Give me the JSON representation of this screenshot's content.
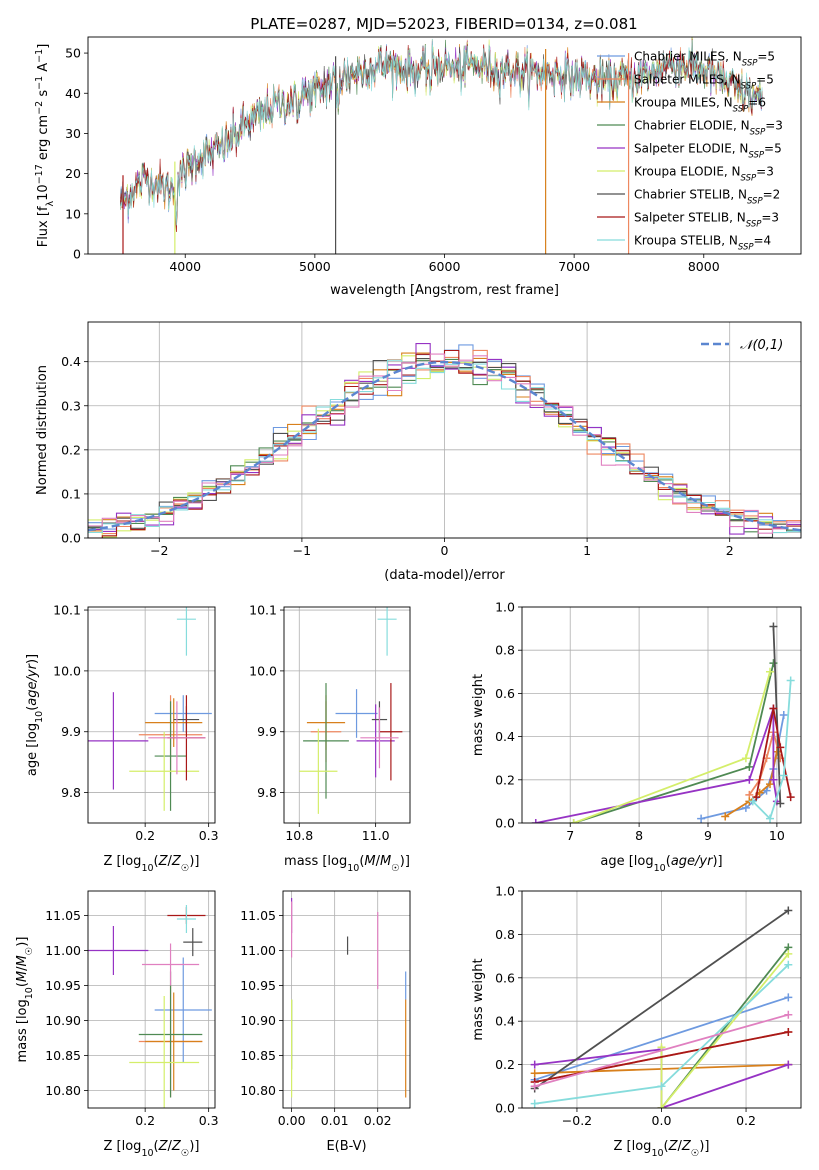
{
  "figure": {
    "title": "PLATE=0287, MJD=52023, FIBERID=0134, z=0.081"
  },
  "colors": {
    "c0": "#6e9ae0",
    "c1": "#ee8860",
    "c2": "#d8801c",
    "c3": "#4f8a53",
    "c4": "#9633c4",
    "c5": "#d4ee6a",
    "c6": "#505050",
    "c7": "#a81818",
    "c8": "#86dcdc",
    "c9": "#e080c0",
    "gauss": "#5b86d0"
  },
  "chart_data": [
    {
      "id": "spectrum",
      "type": "line",
      "xlabel": "wavelength [Angstrom, rest frame]",
      "ylabel": "Flux [f_λ 10^-17 erg cm^-2 s^-1 A^-1]",
      "xlim": [
        3250,
        8750
      ],
      "ylim": [
        0,
        54
      ],
      "xticks": [
        4000,
        5000,
        6000,
        7000,
        8000
      ],
      "yticks": [
        0,
        10,
        20,
        30,
        40,
        50
      ],
      "grid": false,
      "legend_position": "right",
      "continuum_x": [
        3500,
        3600,
        3700,
        3800,
        3900,
        4000,
        4100,
        4200,
        4300,
        4400,
        4500,
        4600,
        4700,
        4800,
        4900,
        5000,
        5100,
        5200,
        5300,
        5400,
        5500,
        5600,
        5700,
        5800,
        5900,
        6000,
        6100,
        6200,
        6300,
        6400,
        6500,
        6600,
        6700,
        6800,
        6900,
        7000,
        7100,
        7200,
        7300,
        7400,
        7500,
        7600,
        7700,
        7800,
        7900,
        8000,
        8100,
        8200,
        8300,
        8400
      ],
      "continuum_y": [
        13,
        16,
        19,
        17,
        16,
        21,
        24,
        25,
        27,
        30,
        33,
        35,
        37,
        38,
        40,
        40,
        42,
        44,
        45,
        46,
        47,
        47,
        46,
        45,
        47,
        47,
        46,
        47,
        47,
        46,
        46,
        45,
        45,
        45,
        45,
        44,
        44,
        43,
        43,
        44,
        44,
        45,
        47,
        47,
        47,
        46,
        44,
        42,
        40,
        39
      ],
      "drops": [
        {
          "x": 3520,
          "series": "Salpeter STELIB"
        },
        {
          "x": 3920,
          "series": "Kroupa ELODIE"
        },
        {
          "x": 5160,
          "series": "Chabrier STELIB"
        },
        {
          "x": 6780,
          "series": "Kroupa MILES"
        },
        {
          "x": 7420,
          "series": "Salpeter MILES"
        }
      ],
      "series": [
        {
          "name": "Chabrier MILES",
          "nssp": "5",
          "color": "#6e9ae0"
        },
        {
          "name": "Salpeter MILES",
          "nssp": "5",
          "color": "#ee8860"
        },
        {
          "name": "Kroupa MILES",
          "nssp": "6",
          "color": "#d8801c"
        },
        {
          "name": "Chabrier ELODIE",
          "nssp": "3",
          "color": "#4f8a53"
        },
        {
          "name": "Salpeter ELODIE",
          "nssp": "5",
          "color": "#9633c4"
        },
        {
          "name": "Kroupa ELODIE",
          "nssp": "3",
          "color": "#d4ee6a"
        },
        {
          "name": "Chabrier STELIB",
          "nssp": "2",
          "color": "#505050"
        },
        {
          "name": "Salpeter STELIB",
          "nssp": "3",
          "color": "#a81818"
        },
        {
          "name": "Kroupa STELIB",
          "nssp": "4",
          "color": "#86dcdc"
        }
      ]
    },
    {
      "id": "residuals",
      "type": "histogram",
      "xlabel": "(data-model)/error",
      "ylabel": "Normed distribution",
      "xlim": [
        -2.5,
        2.5
      ],
      "ylim": [
        0,
        0.49
      ],
      "xticks": [
        -2,
        -1,
        0,
        1,
        2
      ],
      "yticks": [
        0.0,
        0.1,
        0.2,
        0.3,
        0.4
      ],
      "grid": true,
      "legend": "𝒩(0,1)",
      "legend_position": "top-right",
      "bin_width": 0.1,
      "n_bins": 50,
      "overlay": "normal pdf mean 0 sigma 1"
    },
    {
      "id": "age-vs-Z",
      "type": "errorbar",
      "xlabel": "Z [log10(Z/Z☉)]",
      "ylabel": "age [log10(age/yr)]",
      "xlim": [
        0.11,
        0.31
      ],
      "ylim": [
        9.75,
        10.105
      ],
      "xticks": [
        0.2,
        0.3
      ],
      "yticks": [
        9.8,
        9.9,
        10.0,
        10.1
      ],
      "grid": true,
      "points": [
        {
          "series": "Chabrier MILES",
          "x": 0.26,
          "y": 9.93,
          "xerr": 0.045,
          "yerr": 0.03
        },
        {
          "series": "Salpeter MILES",
          "x": 0.24,
          "y": 9.895,
          "xerr": 0.05,
          "yerr": 0.065
        },
        {
          "series": "Kroupa MILES",
          "x": 0.245,
          "y": 9.915,
          "xerr": 0.045,
          "yerr": 0.04
        },
        {
          "series": "Chabrier ELODIE",
          "x": 0.24,
          "y": 9.86,
          "xerr": 0.025,
          "yerr": 0.09
        },
        {
          "series": "Salpeter ELODIE",
          "x": 0.15,
          "y": 9.885,
          "xerr": 0.055,
          "yerr": 0.08
        },
        {
          "series": "Kroupa ELODIE",
          "x": 0.23,
          "y": 9.835,
          "xerr": 0.055,
          "yerr": 0.065
        },
        {
          "series": "Chabrier STELIB",
          "x": 0.265,
          "y": 9.92,
          "xerr": 0.02,
          "yerr": 0.022
        },
        {
          "series": "Salpeter STELIB",
          "x": 0.265,
          "y": 9.89,
          "xerr": 0.03,
          "yerr": 0.07
        },
        {
          "series": "Kroupa STELIB",
          "x": 0.265,
          "y": 10.085,
          "xerr": 0.015,
          "yerr": 0.06
        },
        {
          "series": "pink",
          "x": 0.25,
          "y": 9.89,
          "xerr": 0.045,
          "yerr": 0.06
        }
      ]
    },
    {
      "id": "age-vs-mass",
      "type": "errorbar",
      "xlabel": "mass [log10(M/M☉)]",
      "ylabel": "",
      "xlim": [
        10.76,
        11.09
      ],
      "ylim": [
        9.75,
        10.105
      ],
      "xticks": [
        10.8,
        11.0
      ],
      "yticks": [
        9.8,
        9.9,
        10.0,
        10.1
      ],
      "grid": true,
      "points": [
        {
          "series": "Chabrier MILES",
          "x": 10.95,
          "y": 9.93,
          "xerr": 0.055,
          "yerr": 0.04
        },
        {
          "series": "Salpeter MILES",
          "x": 10.87,
          "y": 9.9,
          "xerr": 0.04,
          "yerr": 0.05
        },
        {
          "series": "Kroupa MILES",
          "x": 10.87,
          "y": 9.915,
          "xerr": 0.05,
          "yerr": 0.045
        },
        {
          "series": "Chabrier ELODIE",
          "x": 10.87,
          "y": 9.885,
          "xerr": 0.06,
          "yerr": 0.095
        },
        {
          "series": "Salpeter ELODIE",
          "x": 11.0,
          "y": 9.885,
          "xerr": 0.05,
          "yerr": 0.06
        },
        {
          "series": "Kroupa ELODIE",
          "x": 10.85,
          "y": 9.835,
          "xerr": 0.05,
          "yerr": 0.07
        },
        {
          "series": "Chabrier STELIB",
          "x": 11.01,
          "y": 9.92,
          "xerr": 0.02,
          "yerr": 0.03
        },
        {
          "series": "Salpeter STELIB",
          "x": 11.04,
          "y": 9.9,
          "xerr": 0.03,
          "yerr": 0.08
        },
        {
          "series": "Kroupa STELIB",
          "x": 11.03,
          "y": 10.085,
          "xerr": 0.025,
          "yerr": 0.06
        },
        {
          "series": "pink",
          "x": 11.01,
          "y": 9.89,
          "xerr": 0.05,
          "yerr": 0.05
        }
      ]
    },
    {
      "id": "weight-vs-age",
      "type": "line",
      "xlabel": "age [log10(age/yr)]",
      "ylabel": "mass weight",
      "xlim": [
        6.3,
        10.35
      ],
      "ylim": [
        0,
        1.0
      ],
      "xticks": [
        7,
        8,
        9,
        10
      ],
      "yticks": [
        0.0,
        0.2,
        0.4,
        0.6,
        0.8,
        1.0
      ],
      "grid": true,
      "series": [
        {
          "name": "Chabrier MILES",
          "x": [
            8.9,
            9.55,
            9.85,
            9.95,
            10.1
          ],
          "y": [
            0.02,
            0.07,
            0.15,
            0.25,
            0.5
          ]
        },
        {
          "name": "Salpeter MILES",
          "x": [
            9.6,
            9.75,
            9.85,
            9.95,
            10.05
          ],
          "y": [
            0.13,
            0.2,
            0.3,
            0.42,
            0.3
          ]
        },
        {
          "name": "Kroupa MILES",
          "x": [
            9.25,
            9.6,
            9.75,
            9.9,
            10.0
          ],
          "y": [
            0.03,
            0.1,
            0.14,
            0.18,
            0.33
          ]
        },
        {
          "name": "Chabrier ELODIE",
          "x": [
            7.05,
            9.6,
            9.95
          ],
          "y": [
            0.0,
            0.26,
            0.74
          ]
        },
        {
          "name": "Salpeter ELODIE",
          "x": [
            6.5,
            9.6,
            9.95,
            9.95,
            10.0
          ],
          "y": [
            0.0,
            0.2,
            0.53,
            0.2,
            0.1
          ]
        },
        {
          "name": "Kroupa ELODIE",
          "x": [
            7.05,
            9.55,
            9.9
          ],
          "y": [
            0.0,
            0.3,
            0.7
          ]
        },
        {
          "name": "Chabrier STELIB",
          "x": [
            9.95,
            10.05
          ],
          "y": [
            0.91,
            0.09
          ]
        },
        {
          "name": "Salpeter STELIB",
          "x": [
            9.7,
            9.95,
            10.05,
            10.2
          ],
          "y": [
            0.12,
            0.53,
            0.35,
            0.12
          ]
        },
        {
          "name": "Kroupa STELIB",
          "x": [
            9.65,
            9.9,
            10.1,
            10.2
          ],
          "y": [
            0.1,
            0.02,
            0.22,
            0.66
          ]
        }
      ]
    },
    {
      "id": "mass-vs-Z",
      "type": "errorbar",
      "xlabel": "Z [log10(Z/Z☉)]",
      "ylabel": "mass [log10(M/M☉)]",
      "xlim": [
        0.11,
        0.31
      ],
      "ylim": [
        10.775,
        11.085
      ],
      "xticks": [
        0.2,
        0.3
      ],
      "yticks": [
        10.8,
        10.85,
        10.9,
        10.95,
        11.0,
        11.05
      ],
      "grid": true,
      "points": [
        {
          "series": "Chabrier MILES",
          "x": 0.26,
          "y": 10.915,
          "xerr": 0.045,
          "yerr": 0.075
        },
        {
          "series": "Salpeter MILES",
          "x": 0.24,
          "y": 10.87,
          "xerr": 0.05,
          "yerr": 0.08
        },
        {
          "series": "Kroupa MILES",
          "x": 0.245,
          "y": 10.87,
          "xerr": 0.045,
          "yerr": 0.07
        },
        {
          "series": "Chabrier ELODIE",
          "x": 0.24,
          "y": 10.88,
          "xerr": 0.05,
          "yerr": 0.09
        },
        {
          "series": "Salpeter ELODIE",
          "x": 0.15,
          "y": 11.0,
          "xerr": 0.055,
          "yerr": 0.035
        },
        {
          "series": "Kroupa ELODIE",
          "x": 0.23,
          "y": 10.84,
          "xerr": 0.055,
          "yerr": 0.095
        },
        {
          "series": "Chabrier STELIB",
          "x": 0.275,
          "y": 11.012,
          "xerr": 0.015,
          "yerr": 0.02
        },
        {
          "series": "Salpeter STELIB",
          "x": 0.265,
          "y": 11.05,
          "xerr": 0.03,
          "yerr": 0.012
        },
        {
          "series": "Kroupa STELIB",
          "x": 0.265,
          "y": 11.045,
          "xerr": 0.015,
          "yerr": 0.02
        },
        {
          "series": "pink",
          "x": 0.24,
          "y": 10.98,
          "xerr": 0.045,
          "yerr": 0.03
        }
      ]
    },
    {
      "id": "mass-vs-EBV",
      "type": "errorbar",
      "xlabel": "E(B-V)",
      "ylabel": "",
      "xlim": [
        -0.002,
        0.0275
      ],
      "ylim": [
        10.775,
        11.085
      ],
      "xticks": [
        0.0,
        0.01,
        0.02
      ],
      "yticks": [
        10.8,
        10.85,
        10.9,
        10.95,
        11.0,
        11.05
      ],
      "grid": true,
      "points": [
        {
          "series": "Chabrier MILES",
          "x": 0.0265,
          "y": 10.95,
          "xerr": 0,
          "yerr": 0.02
        },
        {
          "series": "Kroupa MILES",
          "x": 0.0265,
          "y": 10.86,
          "xerr": 0,
          "yerr": 0.07
        },
        {
          "series": "Chabrier ELODIE",
          "x": 0.0,
          "y": 10.88,
          "xerr": 0,
          "yerr": 0.05
        },
        {
          "series": "Salpeter ELODIE",
          "x": 0.0,
          "y": 11.05,
          "xerr": 0,
          "yerr": 0.025
        },
        {
          "series": "Kroupa ELODIE",
          "x": 0.0,
          "y": 10.86,
          "xerr": 0,
          "yerr": 0.07
        },
        {
          "series": "Chabrier STELIB",
          "x": 0.013,
          "y": 11.007,
          "xerr": 0,
          "yerr": 0.013
        },
        {
          "series": "pink",
          "x": 0.02,
          "y": 11.0,
          "xerr": 0,
          "yerr": 0.055
        },
        {
          "series": "pink",
          "x": 0.0,
          "y": 11.03,
          "xerr": 0,
          "yerr": 0.04
        }
      ]
    },
    {
      "id": "weight-vs-Z",
      "type": "line",
      "xlabel": "Z [log10(Z/Z☉)]",
      "ylabel": "mass weight",
      "xlim": [
        -0.33,
        0.33
      ],
      "ylim": [
        0,
        1.0
      ],
      "xticks": [
        -0.2,
        0.0,
        0.2
      ],
      "yticks": [
        0.0,
        0.2,
        0.4,
        0.6,
        0.8,
        1.0
      ],
      "grid": true,
      "series": [
        {
          "name": "Chabrier MILES",
          "x": [
            -0.3,
            0.3
          ],
          "y": [
            0.13,
            0.51
          ]
        },
        {
          "name": "Salpeter MILES",
          "x": [
            -0.3,
            0.3
          ],
          "y": [
            0.12,
            0.35
          ]
        },
        {
          "name": "Kroupa MILES",
          "x": [
            -0.3,
            0.3
          ],
          "y": [
            0.16,
            0.2
          ]
        },
        {
          "name": "Chabrier ELODIE",
          "x": [
            0.0,
            0.3
          ],
          "y": [
            0.0,
            0.74
          ]
        },
        {
          "name": "Salpeter ELODIE",
          "x": [
            -0.3,
            0.0,
            0.0,
            0.3
          ],
          "y": [
            0.2,
            0.27,
            0.0,
            0.2
          ]
        },
        {
          "name": "Kroupa ELODIE",
          "x": [
            0.0,
            0.0,
            0.3
          ],
          "y": [
            0.28,
            0.0,
            0.71
          ]
        },
        {
          "name": "Chabrier STELIB",
          "x": [
            -0.3,
            0.3
          ],
          "y": [
            0.09,
            0.91
          ]
        },
        {
          "name": "Salpeter STELIB",
          "x": [
            -0.3,
            0.3
          ],
          "y": [
            0.12,
            0.35
          ]
        },
        {
          "name": "Kroupa STELIB",
          "x": [
            -0.3,
            0.0,
            0.3
          ],
          "y": [
            0.02,
            0.1,
            0.66
          ]
        },
        {
          "name": "pink",
          "x": [
            -0.3,
            0.3
          ],
          "y": [
            0.1,
            0.43
          ]
        }
      ]
    }
  ]
}
